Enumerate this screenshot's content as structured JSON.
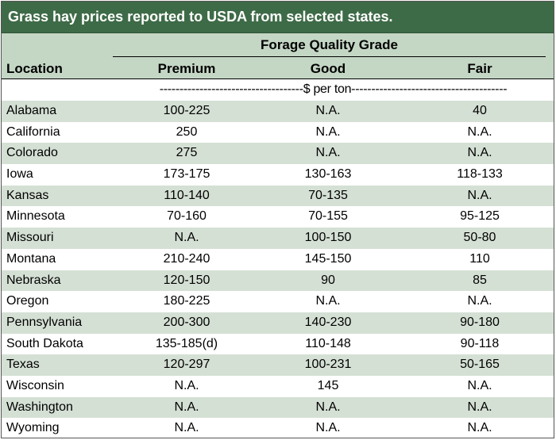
{
  "title": "Grass hay prices reported to USDA from selected states.",
  "header": {
    "group_label": "Forage Quality Grade",
    "location_label": "Location",
    "columns": [
      "Premium",
      "Good",
      "Fair"
    ]
  },
  "unit_row": "------------------------------------$ per ton---------------------------------------",
  "rows": [
    {
      "location": "Alabama",
      "premium": "100-225",
      "good": "N.A.",
      "fair": "40"
    },
    {
      "location": "California",
      "premium": "250",
      "good": "N.A.",
      "fair": "N.A."
    },
    {
      "location": "Colorado",
      "premium": "275",
      "good": "N.A.",
      "fair": "N.A."
    },
    {
      "location": "Iowa",
      "premium": "173-175",
      "good": "130-163",
      "fair": "118-133"
    },
    {
      "location": "Kansas",
      "premium": "110-140",
      "good": "70-135",
      "fair": "N.A."
    },
    {
      "location": "Minnesota",
      "premium": "70-160",
      "good": "70-155",
      "fair": "95-125"
    },
    {
      "location": "Missouri",
      "premium": "N.A.",
      "good": "100-150",
      "fair": "50-80"
    },
    {
      "location": "Montana",
      "premium": "210-240",
      "good": "145-150",
      "fair": "110"
    },
    {
      "location": "Nebraska",
      "premium": "120-150",
      "good": "90",
      "fair": "85"
    },
    {
      "location": "Oregon",
      "premium": "180-225",
      "good": "N.A.",
      "fair": "N.A."
    },
    {
      "location": "Pennsylvania",
      "premium": "200-300",
      "good": "140-230",
      "fair": "90-180"
    },
    {
      "location": "South Dakota",
      "premium": "135-185(d)",
      "good": "110-148",
      "fair": "90-118"
    },
    {
      "location": "Texas",
      "premium": "120-297",
      "good": "100-231",
      "fair": "50-165"
    },
    {
      "location": "Wisconsin",
      "premium": "N.A.",
      "good": "145",
      "fair": "N.A."
    },
    {
      "location": "Washington",
      "premium": "N.A.",
      "good": "N.A.",
      "fair": "N.A."
    },
    {
      "location": "Wyoming",
      "premium": "N.A.",
      "good": "N.A.",
      "fair": "N.A."
    }
  ],
  "colors": {
    "title_bg": "#3e6b47",
    "header_bg": "#c4d6c4",
    "shade_row": "#d5e0d5"
  }
}
